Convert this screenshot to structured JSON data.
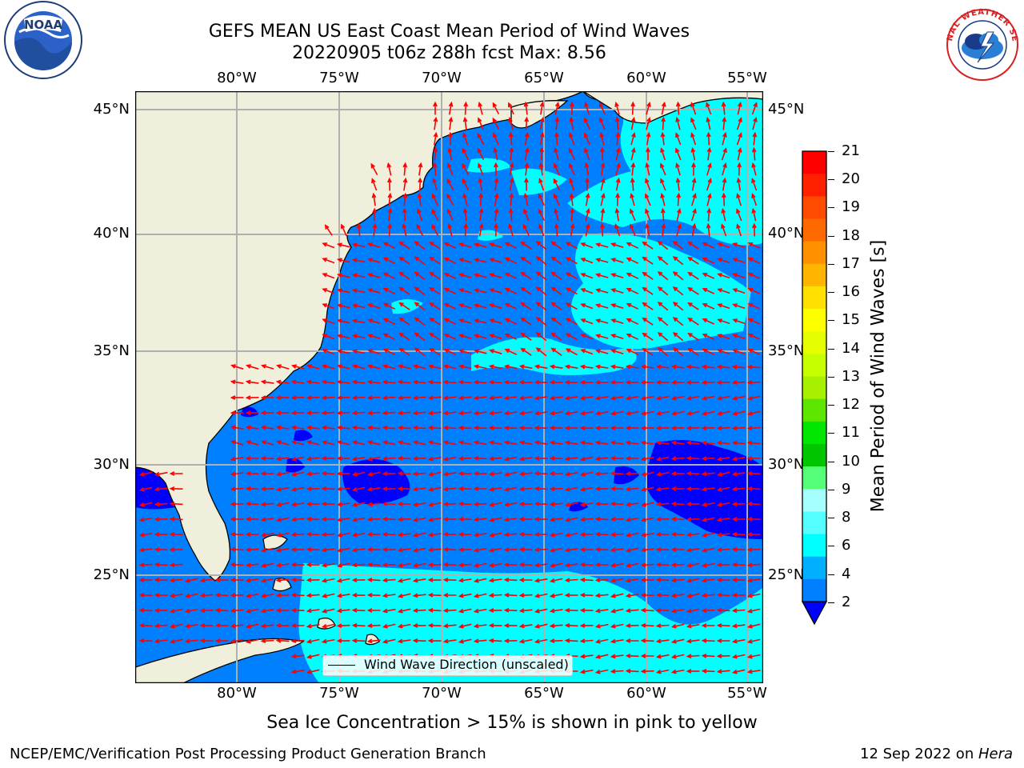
{
  "header": {
    "title_line1": "GEFS MEAN US East Coast Mean Period of Wind Waves",
    "title_line2": "20220905 t06z 288h fcst   Max: 8.56"
  },
  "logos": {
    "left": "NOAA",
    "right": "NATIONAL WEATHER SERVICE"
  },
  "map": {
    "lon_ticks": [
      "80°W",
      "75°W",
      "70°W",
      "65°W",
      "60°W",
      "55°W"
    ],
    "lat_ticks": [
      "45°N",
      "40°N",
      "35°N",
      "30°N",
      "25°N"
    ],
    "lon_range": [
      -85,
      -54
    ],
    "lat_range": [
      20.5,
      46
    ],
    "gridlines": true,
    "colors": {
      "land": "#efefdc",
      "ocean_2_4": "#0080ff",
      "ocean_below_2": "#0000ff",
      "ocean_4_6": "#00ffff",
      "arrows": "#ff0000",
      "grid": "#b0b0b0"
    }
  },
  "legend": {
    "label": "Wind Wave Direction (unscaled)"
  },
  "colorbar": {
    "label": "Mean Period of Wind Waves [s]",
    "ticks": [
      "21",
      "20",
      "19",
      "18",
      "17",
      "16",
      "15",
      "14",
      "13",
      "12",
      "11",
      "10",
      "9",
      "8",
      "6",
      "4",
      "2"
    ],
    "colors": [
      "#ff0000",
      "#ff2000",
      "#ff4a00",
      "#ff6a00",
      "#ff9000",
      "#ffb400",
      "#ffe000",
      "#ffff00",
      "#e6ff00",
      "#c6ff00",
      "#a6f000",
      "#5ce600",
      "#00e600",
      "#00c600",
      "#55ff77",
      "#a6ffff",
      "#55ffff",
      "#00ffff",
      "#00b0ff",
      "#0080ff"
    ],
    "extend_color": "#0000ff"
  },
  "note": "Sea Ice Concentration > 15% is shown in pink to yellow",
  "footer": {
    "left": "NCEP/EMC/Verification Post Processing Product Generation Branch",
    "date": "12 Sep 2022 on ",
    "host": "Hera"
  }
}
